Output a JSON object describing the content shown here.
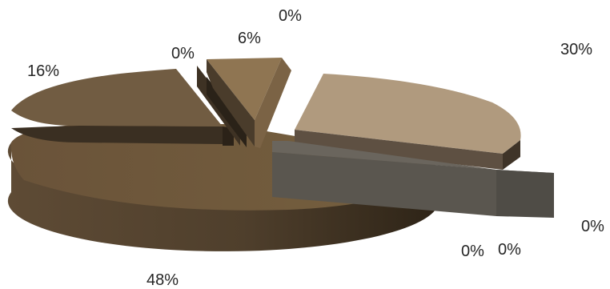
{
  "chart_data": {
    "type": "pie",
    "variant": "3d-exploded",
    "slices": [
      {
        "value": 30,
        "label": "30%",
        "color": "#B09A7E"
      },
      {
        "value": 0,
        "label": "0%",
        "color": "#4F4C46"
      },
      {
        "value": 0,
        "label": "0%",
        "color": "#5A564F"
      },
      {
        "value": 0,
        "label": "0%",
        "color": "#6A5E4E"
      },
      {
        "value": 48,
        "label": "48%",
        "color": "#6F5A40"
      },
      {
        "value": 16,
        "label": "16%",
        "color": "#715C42"
      },
      {
        "value": 0,
        "label": "0%",
        "color": "#4C3E2D"
      },
      {
        "value": 6,
        "label": "6%",
        "color": "#8F7552"
      },
      {
        "value": 0,
        "label": "0%",
        "color": "#7A6346"
      }
    ]
  }
}
